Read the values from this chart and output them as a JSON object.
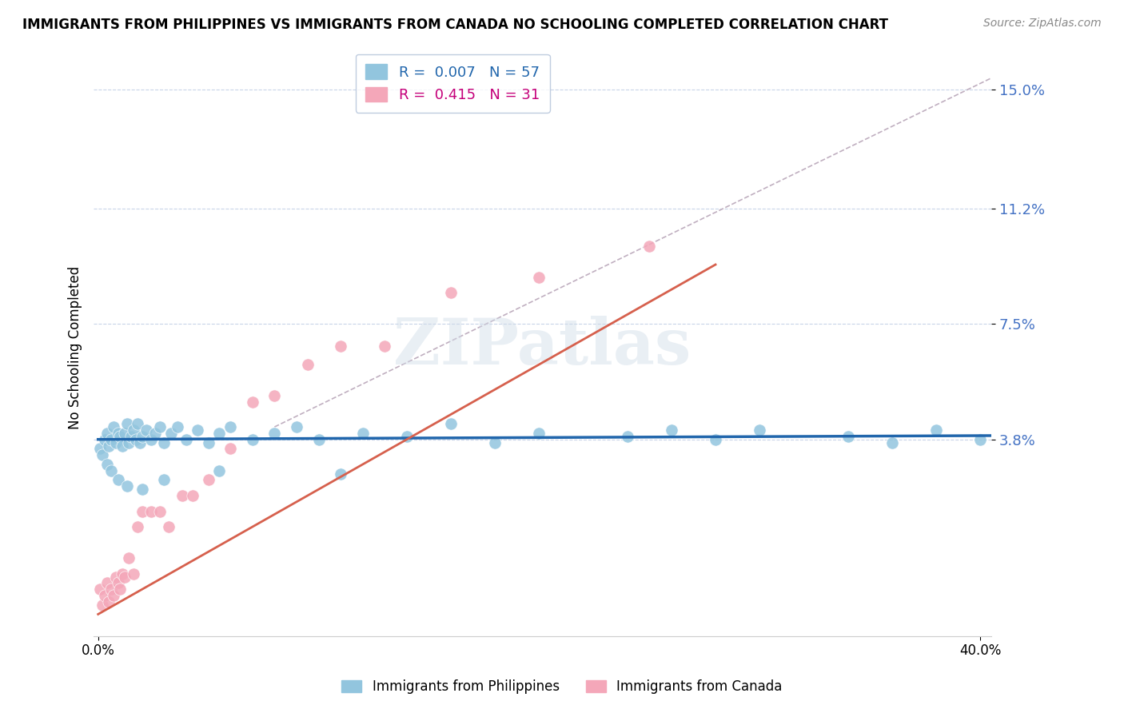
{
  "title": "IMMIGRANTS FROM PHILIPPINES VS IMMIGRANTS FROM CANADA NO SCHOOLING COMPLETED CORRELATION CHART",
  "source": "Source: ZipAtlas.com",
  "ylabel": "No Schooling Completed",
  "xlim": [
    -0.002,
    0.405
  ],
  "ylim": [
    -0.025,
    0.16
  ],
  "yticks": [
    0.038,
    0.075,
    0.112,
    0.15
  ],
  "ytick_labels": [
    "3.8%",
    "7.5%",
    "11.2%",
    "15.0%"
  ],
  "xtick_labels": [
    "0.0%",
    "40.0%"
  ],
  "legend_r1": "R =  0.007",
  "legend_n1": "N = 57",
  "legend_r2": "R =  0.415",
  "legend_n2": "N = 31",
  "color_blue": "#92c5de",
  "color_pink": "#f4a7b9",
  "color_blue_line": "#2166ac",
  "color_pink_line": "#d6604d",
  "color_dashed": "#c0afc0",
  "watermark": "ZIPatlas",
  "ph_x": [
    0.001,
    0.002,
    0.003,
    0.004,
    0.005,
    0.006,
    0.007,
    0.008,
    0.009,
    0.01,
    0.011,
    0.012,
    0.013,
    0.014,
    0.015,
    0.016,
    0.017,
    0.018,
    0.019,
    0.02,
    0.022,
    0.024,
    0.026,
    0.028,
    0.03,
    0.033,
    0.036,
    0.04,
    0.045,
    0.05,
    0.055,
    0.06,
    0.07,
    0.08,
    0.09,
    0.1,
    0.12,
    0.14,
    0.16,
    0.18,
    0.2,
    0.24,
    0.26,
    0.28,
    0.3,
    0.34,
    0.36,
    0.38,
    0.4,
    0.004,
    0.006,
    0.009,
    0.013,
    0.02,
    0.03,
    0.055,
    0.11
  ],
  "ph_y": [
    0.035,
    0.033,
    0.038,
    0.04,
    0.036,
    0.038,
    0.042,
    0.037,
    0.04,
    0.039,
    0.036,
    0.04,
    0.043,
    0.037,
    0.039,
    0.041,
    0.038,
    0.043,
    0.037,
    0.039,
    0.041,
    0.038,
    0.04,
    0.042,
    0.037,
    0.04,
    0.042,
    0.038,
    0.041,
    0.037,
    0.04,
    0.042,
    0.038,
    0.04,
    0.042,
    0.038,
    0.04,
    0.039,
    0.043,
    0.037,
    0.04,
    0.039,
    0.041,
    0.038,
    0.041,
    0.039,
    0.037,
    0.041,
    0.038,
    0.03,
    0.028,
    0.025,
    0.023,
    0.022,
    0.025,
    0.028,
    0.027
  ],
  "ca_x": [
    0.001,
    0.002,
    0.003,
    0.004,
    0.005,
    0.006,
    0.007,
    0.008,
    0.009,
    0.01,
    0.011,
    0.012,
    0.014,
    0.016,
    0.018,
    0.02,
    0.024,
    0.028,
    0.032,
    0.038,
    0.043,
    0.05,
    0.06,
    0.07,
    0.08,
    0.095,
    0.11,
    0.13,
    0.16,
    0.2,
    0.25
  ],
  "ca_y": [
    -0.01,
    -0.015,
    -0.012,
    -0.008,
    -0.014,
    -0.01,
    -0.012,
    -0.006,
    -0.008,
    -0.01,
    -0.005,
    -0.006,
    0.0,
    -0.005,
    0.01,
    0.015,
    0.015,
    0.015,
    0.01,
    0.02,
    0.02,
    0.025,
    0.035,
    0.05,
    0.052,
    0.062,
    0.068,
    0.068,
    0.085,
    0.09,
    0.1
  ]
}
